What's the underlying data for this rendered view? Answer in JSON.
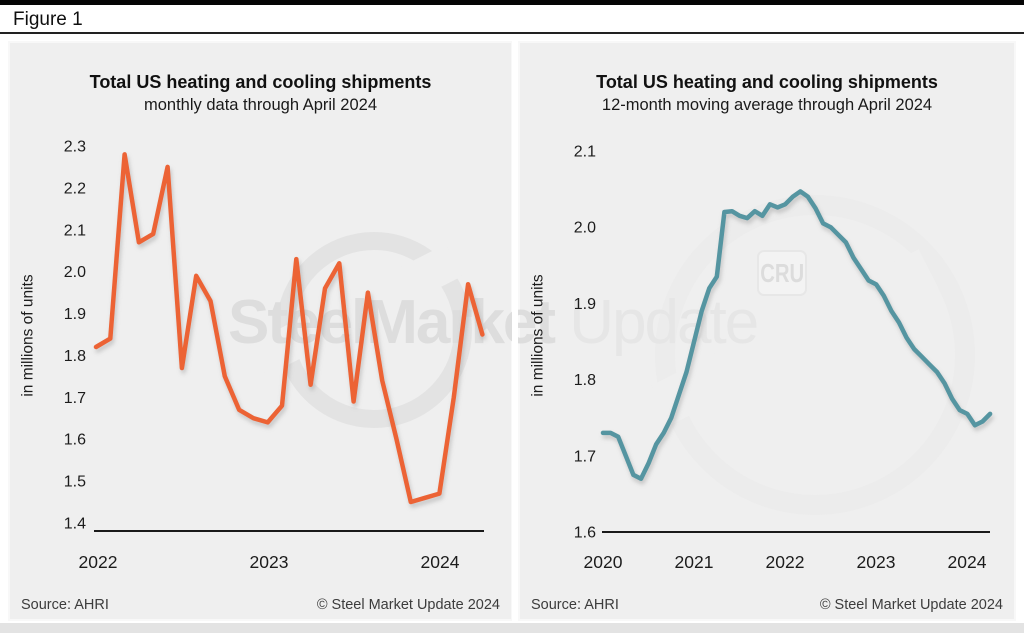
{
  "figure_label": "Figure 1",
  "watermark": {
    "bold_text": "SteelMarket",
    "light_text": " Update",
    "cru_label": "CRU"
  },
  "colors": {
    "orange": "#EC6434",
    "teal": "#5595A1",
    "panel_bg": "#EFEFEF",
    "axis": "#1A1A1A"
  },
  "panels": [
    {
      "title": "Total US heating and cooling shipments",
      "subtitle": "monthly data through April 2024",
      "ylabel": "in millions of units",
      "source": "Source: AHRI",
      "copyright": "© Steel Market Update 2024"
    },
    {
      "title": "Total US heating and cooling shipments",
      "subtitle": "12-month moving average through April 2024",
      "ylabel": "in millions of units",
      "source": "Source: AHRI",
      "copyright": "© Steel Market Update 2024"
    }
  ],
  "chart_data": [
    {
      "type": "line",
      "title": "Total US heating and cooling shipments",
      "subtitle": "monthly data through April 2024",
      "ylabel": "in millions of units",
      "color": "#EC6434",
      "x_frequency": "monthly",
      "x_range": [
        "2022-01",
        "2024-04"
      ],
      "x_tick_labels": [
        "2022",
        "2023",
        "2024"
      ],
      "ylim": [
        1.4,
        2.3
      ],
      "y_ticks": [
        2.3,
        2.2,
        2.1,
        2.0,
        1.9,
        1.8,
        1.7,
        1.6,
        1.5,
        1.4
      ],
      "grid": false,
      "legend": false,
      "values": [
        1.82,
        1.84,
        2.28,
        2.07,
        2.09,
        2.25,
        1.77,
        1.99,
        1.93,
        1.75,
        1.67,
        1.65,
        1.64,
        1.68,
        2.03,
        1.73,
        1.96,
        2.02,
        1.69,
        1.95,
        1.74,
        1.6,
        1.45,
        1.46,
        1.47,
        1.7,
        1.97,
        1.85
      ]
    },
    {
      "type": "line",
      "title": "Total US heating and cooling shipments",
      "subtitle": "12-month moving average through April 2024",
      "ylabel": "in millions of units",
      "color": "#5595A1",
      "x_frequency": "monthly",
      "x_range": [
        "2020-01",
        "2024-04"
      ],
      "x_tick_labels": [
        "2020",
        "2021",
        "2022",
        "2023",
        "2024"
      ],
      "ylim": [
        1.6,
        2.1
      ],
      "y_ticks": [
        2.1,
        2.0,
        1.9,
        1.8,
        1.7,
        1.6
      ],
      "grid": false,
      "legend": false,
      "values": [
        1.73,
        1.73,
        1.725,
        1.7,
        1.675,
        1.67,
        1.69,
        1.715,
        1.73,
        1.75,
        1.78,
        1.81,
        1.85,
        1.89,
        1.92,
        1.935,
        2.02,
        2.021,
        2.015,
        2.012,
        2.021,
        2.015,
        2.03,
        2.026,
        2.03,
        2.04,
        2.047,
        2.04,
        2.025,
        2.005,
        2.0,
        1.99,
        1.98,
        1.96,
        1.945,
        1.93,
        1.925,
        1.91,
        1.89,
        1.875,
        1.855,
        1.84,
        1.83,
        1.82,
        1.81,
        1.795,
        1.775,
        1.76,
        1.755,
        1.74,
        1.745,
        1.755
      ]
    }
  ]
}
